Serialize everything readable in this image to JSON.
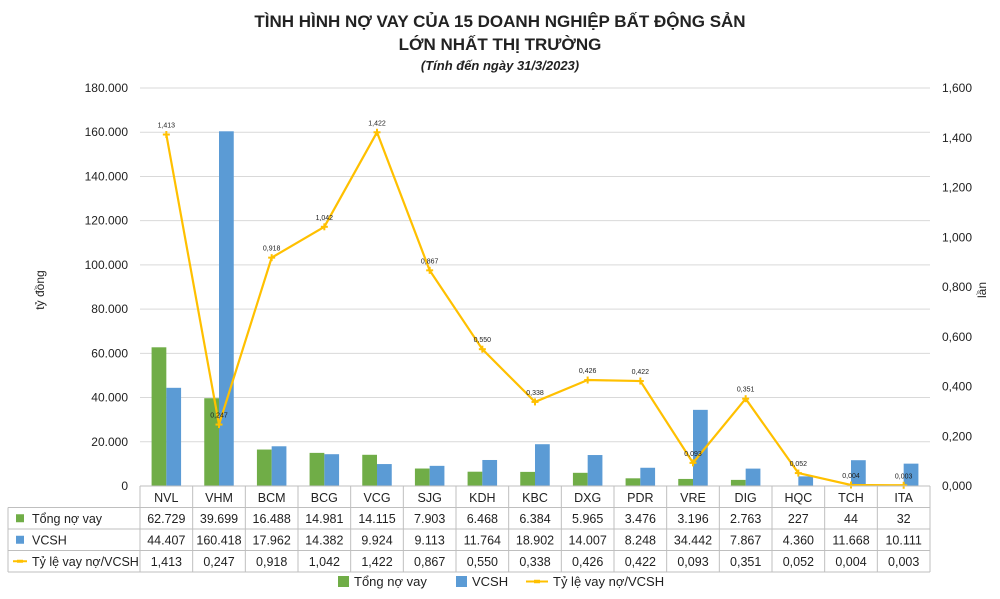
{
  "title_line1": "TÌNH HÌNH NỢ VAY CỦA 15 DOANH NGHIỆP BẤT ĐỘNG SẢN",
  "title_line2": "LỚN NHẤT THỊ TRƯỜNG",
  "subtitle": "(Tính đến ngày 31/3/2023)",
  "colors": {
    "debt": "#70ad47",
    "equity": "#5b9bd5",
    "ratio": "#ffc000",
    "grid": "#d9d9d9",
    "table_border": "#bfbfbf"
  },
  "chart_data": {
    "type": "bar",
    "title": "TÌNH HÌNH NỢ VAY CỦA 15 DOANH NGHIỆP BẤT ĐỘNG SẢN LỚN NHẤT THỊ TRƯỜNG",
    "subtitle": "(Tính đến ngày 31/3/2023)",
    "categories": [
      "NVL",
      "VHM",
      "BCM",
      "BCG",
      "VCG",
      "SJG",
      "KDH",
      "KBC",
      "DXG",
      "PDR",
      "VRE",
      "DIG",
      "HQC",
      "TCH",
      "ITA"
    ],
    "ylabel": "tỷ đồng",
    "y2label": "lần",
    "ylim": [
      0,
      180000
    ],
    "y2lim": [
      0,
      1.6
    ],
    "y_ticks": [
      "0",
      "20.000",
      "40.000",
      "60.000",
      "80.000",
      "100.000",
      "120.000",
      "140.000",
      "160.000",
      "180.000"
    ],
    "y2_ticks": [
      "0,000",
      "0,200",
      "0,400",
      "0,600",
      "0,800",
      "1,000",
      "1,200",
      "1,400",
      "1,600"
    ],
    "grid": true,
    "legend_position": "bottom",
    "series": [
      {
        "name": "Tổng nợ vay",
        "type": "bar",
        "axis": "left",
        "values": [
          62729,
          39699,
          16488,
          14981,
          14115,
          7903,
          6468,
          6384,
          5965,
          3476,
          3196,
          2763,
          227,
          44,
          32
        ],
        "labels": [
          "62.729",
          "39.699",
          "16.488",
          "14.981",
          "14.115",
          "7.903",
          "6.468",
          "6.384",
          "5.965",
          "3.476",
          "3.196",
          "2.763",
          "227",
          "44",
          "32"
        ]
      },
      {
        "name": "VCSH",
        "type": "bar",
        "axis": "left",
        "values": [
          44407,
          160418,
          17962,
          14382,
          9924,
          9113,
          11764,
          18902,
          14007,
          8248,
          34442,
          7867,
          4360,
          11668,
          10111
        ],
        "labels": [
          "44.407",
          "160.418",
          "17.962",
          "14.382",
          "9.924",
          "9.113",
          "11.764",
          "18.902",
          "14.007",
          "8.248",
          "34.442",
          "7.867",
          "4.360",
          "11.668",
          "10.111"
        ]
      },
      {
        "name": "Tỷ lệ vay nợ/VCSH",
        "type": "line",
        "axis": "right",
        "values": [
          1.413,
          0.247,
          0.918,
          1.042,
          1.422,
          0.867,
          0.55,
          0.338,
          0.426,
          0.422,
          0.093,
          0.351,
          0.052,
          0.004,
          0.003
        ],
        "labels": [
          "1,413",
          "0,247",
          "0,918",
          "1,042",
          "1,422",
          "0,867",
          "0,550",
          "0,338",
          "0,426",
          "0,422",
          "0,093",
          "0,351",
          "0,052",
          "0,004",
          "0,003"
        ]
      }
    ]
  }
}
